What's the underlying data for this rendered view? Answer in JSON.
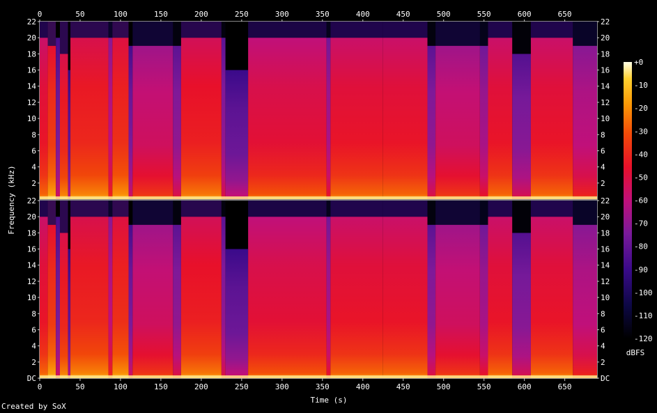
{
  "chart_data": {
    "type": "heatmap",
    "title": "",
    "xlabel": "Time (s)",
    "ylabel": "Frequency (kHz)",
    "colorbar_label": "dBFS",
    "xlim": [
      0,
      690
    ],
    "ylim": [
      0,
      22
    ],
    "x_ticks": [
      "0",
      "50",
      "100",
      "150",
      "200",
      "250",
      "300",
      "350",
      "400",
      "450",
      "500",
      "550",
      "600",
      "650"
    ],
    "x_tick_values": [
      0,
      50,
      100,
      150,
      200,
      250,
      300,
      350,
      400,
      450,
      500,
      550,
      600,
      650
    ],
    "y_ticks": [
      "DC",
      "2",
      "4",
      "6",
      "8",
      "10",
      "12",
      "14",
      "16",
      "18",
      "20",
      "22"
    ],
    "y_tick_values": [
      0,
      2,
      4,
      6,
      8,
      10,
      12,
      14,
      16,
      18,
      20,
      22
    ],
    "colorbar_ticks": [
      "+0",
      "-10",
      "-20",
      "-30",
      "-40",
      "-50",
      "-60",
      "-70",
      "-80",
      "-90",
      "-100",
      "-110",
      "-120"
    ],
    "colorbar_values": [
      0,
      -10,
      -20,
      -30,
      -40,
      -50,
      -60,
      -70,
      -80,
      -90,
      -100,
      -110,
      -120
    ],
    "channels": [
      "upper",
      "lower"
    ],
    "segments": [
      {
        "start": 0,
        "end": 10,
        "level": -45,
        "cutoff_khz": 20
      },
      {
        "start": 10,
        "end": 20,
        "level": -35,
        "cutoff_khz": 19
      },
      {
        "start": 20,
        "end": 25,
        "level": -75,
        "cutoff_khz": 20
      },
      {
        "start": 25,
        "end": 35,
        "level": -40,
        "cutoff_khz": 18
      },
      {
        "start": 35,
        "end": 38,
        "level": -80,
        "cutoff_khz": 16
      },
      {
        "start": 38,
        "end": 85,
        "level": -40,
        "cutoff_khz": 20
      },
      {
        "start": 85,
        "end": 90,
        "level": -60,
        "cutoff_khz": 20
      },
      {
        "start": 90,
        "end": 110,
        "level": -38,
        "cutoff_khz": 20
      },
      {
        "start": 110,
        "end": 115,
        "level": -75,
        "cutoff_khz": 19
      },
      {
        "start": 115,
        "end": 165,
        "level": -55,
        "cutoff_khz": 19
      },
      {
        "start": 165,
        "end": 175,
        "level": -70,
        "cutoff_khz": 19
      },
      {
        "start": 175,
        "end": 225,
        "level": -42,
        "cutoff_khz": 20
      },
      {
        "start": 225,
        "end": 230,
        "level": -70,
        "cutoff_khz": 20
      },
      {
        "start": 230,
        "end": 258,
        "level": -78,
        "cutoff_khz": 16
      },
      {
        "start": 258,
        "end": 355,
        "level": -48,
        "cutoff_khz": 20
      },
      {
        "start": 355,
        "end": 360,
        "level": -65,
        "cutoff_khz": 20
      },
      {
        "start": 360,
        "end": 425,
        "level": -45,
        "cutoff_khz": 20
      },
      {
        "start": 425,
        "end": 480,
        "level": -45,
        "cutoff_khz": 20
      },
      {
        "start": 480,
        "end": 490,
        "level": -70,
        "cutoff_khz": 19
      },
      {
        "start": 490,
        "end": 545,
        "level": -55,
        "cutoff_khz": 19
      },
      {
        "start": 545,
        "end": 555,
        "level": -65,
        "cutoff_khz": 19
      },
      {
        "start": 555,
        "end": 585,
        "level": -45,
        "cutoff_khz": 20
      },
      {
        "start": 585,
        "end": 608,
        "level": -72,
        "cutoff_khz": 18
      },
      {
        "start": 608,
        "end": 660,
        "level": -45,
        "cutoff_khz": 20
      },
      {
        "start": 660,
        "end": 690,
        "level": -60,
        "cutoff_khz": 19
      }
    ]
  },
  "footer": {
    "credit": "Created by SoX"
  }
}
